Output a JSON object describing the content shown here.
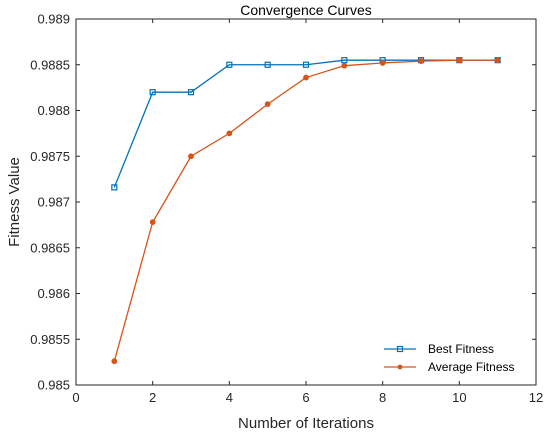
{
  "chart_data": {
    "type": "line",
    "title": "Convergence Curves",
    "xlabel": "Number of Iterations",
    "ylabel": "Fitness Value",
    "xlim": [
      0,
      12
    ],
    "ylim": [
      0.985,
      0.989
    ],
    "x_ticks": [
      0,
      2,
      4,
      6,
      8,
      10,
      12
    ],
    "y_ticks": [
      0.985,
      0.9855,
      0.986,
      0.9865,
      0.987,
      0.9875,
      0.988,
      0.9885,
      0.989
    ],
    "x_tick_labels": [
      "0",
      "2",
      "4",
      "6",
      "8",
      "10",
      "12"
    ],
    "y_tick_labels": [
      "0.985",
      "0.9855",
      "0.986",
      "0.9865",
      "0.987",
      "0.9875",
      "0.988",
      "0.9885",
      "0.989"
    ],
    "grid": false,
    "legend_position": "bottom-right",
    "x": [
      1,
      2,
      3,
      4,
      5,
      6,
      7,
      8,
      9,
      10,
      11
    ],
    "series": [
      {
        "name": "Best Fitness",
        "color": "#0072BD",
        "marker": "square",
        "values": [
          0.98716,
          0.9882,
          0.9882,
          0.9885,
          0.9885,
          0.9885,
          0.98855,
          0.98855,
          0.98855,
          0.98855,
          0.98855
        ]
      },
      {
        "name": "Average Fitness",
        "color": "#D95319",
        "marker": "circle",
        "values": [
          0.98526,
          0.98678,
          0.9875,
          0.98775,
          0.98807,
          0.98836,
          0.98849,
          0.98852,
          0.98854,
          0.98855,
          0.98855
        ]
      }
    ]
  }
}
